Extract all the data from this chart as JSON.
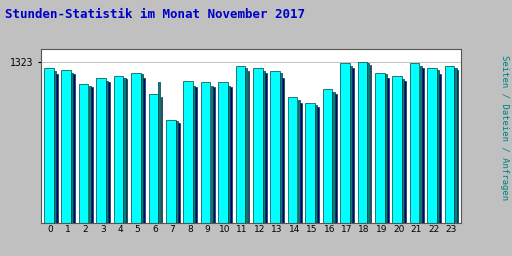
{
  "title": "Stunden-Statistik im Monat November 2017",
  "ylabel_text": "Seiten / Dateien / Anfragen",
  "ytick_label": "1323",
  "bg_color": "#c0c0c0",
  "plot_bg_color": "#ffffff",
  "bar_color_cyan": "#00ffff",
  "bar_color_teal": "#008080",
  "bar_color_blue": "#000080",
  "bar_edge_color": "#004040",
  "title_color": "#0000cc",
  "ylabel_color": "#008080",
  "xtick_color": "#000000",
  "ytick_color": "#000000",
  "hours": [
    "0",
    "1",
    "2",
    "3",
    "4",
    "5",
    "6",
    "7",
    "8",
    "9",
    "10",
    "11",
    "12",
    "13",
    "14",
    "15",
    "16",
    "17",
    "18",
    "19",
    "20",
    "21",
    "22",
    "23"
  ],
  "values_cyan": [
    96,
    95,
    86,
    90,
    91,
    93,
    80,
    64,
    88,
    87,
    87,
    97,
    96,
    94,
    78,
    74,
    83,
    99,
    100,
    93,
    91,
    99,
    96,
    97
  ],
  "values_teal": [
    94,
    93,
    85,
    88,
    90,
    92,
    87,
    63,
    85,
    85,
    85,
    96,
    94,
    93,
    76,
    73,
    81,
    97,
    99,
    92,
    89,
    97,
    95,
    96
  ],
  "values_blue": [
    92,
    92,
    84,
    87,
    89,
    90,
    78,
    62,
    84,
    84,
    84,
    94,
    93,
    90,
    74,
    72,
    80,
    96,
    98,
    90,
    88,
    96,
    92,
    95
  ],
  "ylim_max": 108,
  "ytick_val": 100
}
